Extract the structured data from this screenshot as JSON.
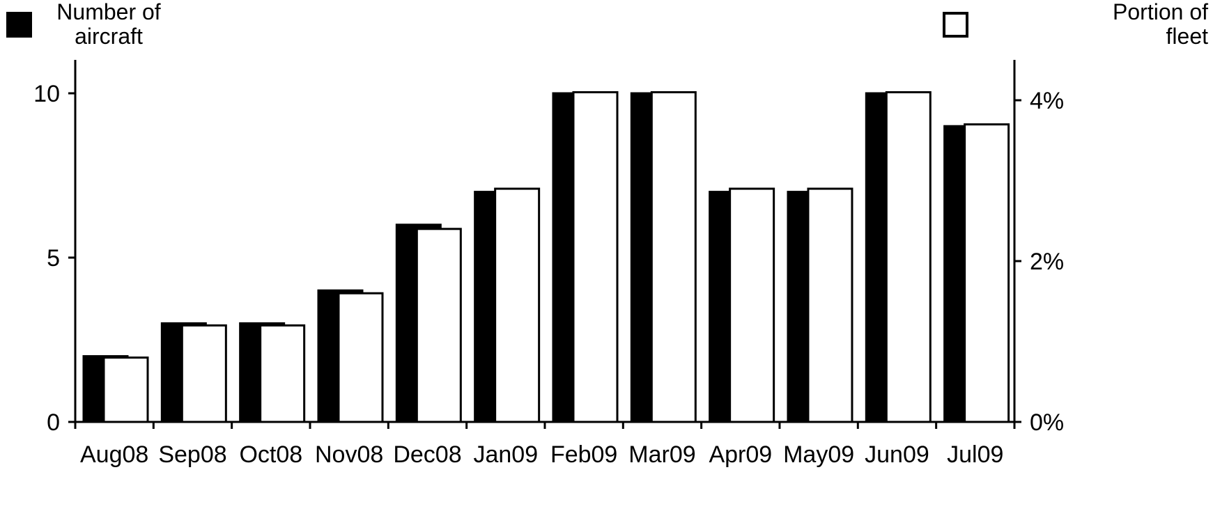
{
  "chart_data": {
    "type": "bar",
    "categories": [
      "Aug08",
      "Sep08",
      "Oct08",
      "Nov08",
      "Dec08",
      "Jan09",
      "Feb09",
      "Mar09",
      "Apr09",
      "May09",
      "Jun09",
      "Jul09"
    ],
    "series": [
      {
        "name": "Number of aircraft",
        "axis": "left",
        "color": "#000000",
        "values": [
          2,
          3,
          3,
          4,
          6,
          7,
          10,
          10,
          7,
          7,
          10,
          9
        ]
      },
      {
        "name": "Portion of fleet",
        "axis": "right",
        "color": "#ffffff",
        "unit": "%",
        "values": [
          0.8,
          1.2,
          1.2,
          1.6,
          2.4,
          2.9,
          4.1,
          4.1,
          2.9,
          2.9,
          4.1,
          3.7
        ]
      }
    ],
    "left_axis": {
      "ylim": [
        0,
        10.3
      ],
      "ticks": [
        0,
        5,
        10
      ],
      "tick_labels": [
        "0",
        "5",
        "10"
      ]
    },
    "right_axis": {
      "ylim": [
        0,
        4.5
      ],
      "ticks": [
        0,
        2,
        4
      ],
      "tick_labels": [
        "0%",
        "2%",
        "4%"
      ]
    },
    "legend": [
      {
        "label_lines": [
          "Number of",
          "aircraft"
        ],
        "placement": "top-left",
        "swatch": "filled"
      },
      {
        "label_lines": [
          "Portion of",
          "fleet"
        ],
        "placement": "top-right",
        "swatch": "outline"
      }
    ],
    "grid": false,
    "title": "",
    "xlabel": "",
    "ylabel": ""
  }
}
